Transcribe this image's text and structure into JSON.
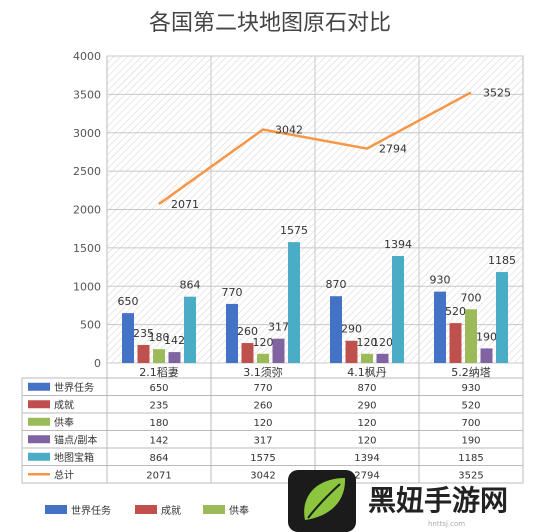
{
  "chart_data": {
    "type": "bar",
    "title": "各国第二块地图原石对比",
    "categories": [
      "2.1稻妻",
      "3.1须弥",
      "4.1枫丹",
      "5.2纳塔"
    ],
    "ylim": [
      0,
      4000
    ],
    "yticks": [
      0,
      500,
      1000,
      1500,
      2000,
      2500,
      3000,
      3500,
      4000
    ],
    "grid": true,
    "legend_position": "bottom",
    "series": [
      {
        "name": "世界任务",
        "type": "bar",
        "color": "#4472C4",
        "values": [
          650,
          770,
          870,
          930
        ]
      },
      {
        "name": "成就",
        "type": "bar",
        "color": "#C0504D",
        "values": [
          235,
          260,
          290,
          520
        ]
      },
      {
        "name": "供奉",
        "type": "bar",
        "color": "#9BBB59",
        "values": [
          180,
          120,
          120,
          700
        ]
      },
      {
        "name": "锚点/副本",
        "type": "bar",
        "color": "#8064A2",
        "values": [
          142,
          317,
          120,
          190
        ]
      },
      {
        "name": "地图宝箱",
        "type": "bar",
        "color": "#4BACC6",
        "values": [
          864,
          1575,
          1394,
          1185
        ]
      },
      {
        "name": "总计",
        "type": "line",
        "color": "#F79646",
        "values": [
          2071,
          3042,
          2794,
          3525
        ]
      }
    ]
  },
  "legend_visible": [
    "世界任务",
    "成就",
    "供奉"
  ],
  "watermark": {
    "text": "黑妞手游网",
    "url": "hnttsj.com"
  }
}
